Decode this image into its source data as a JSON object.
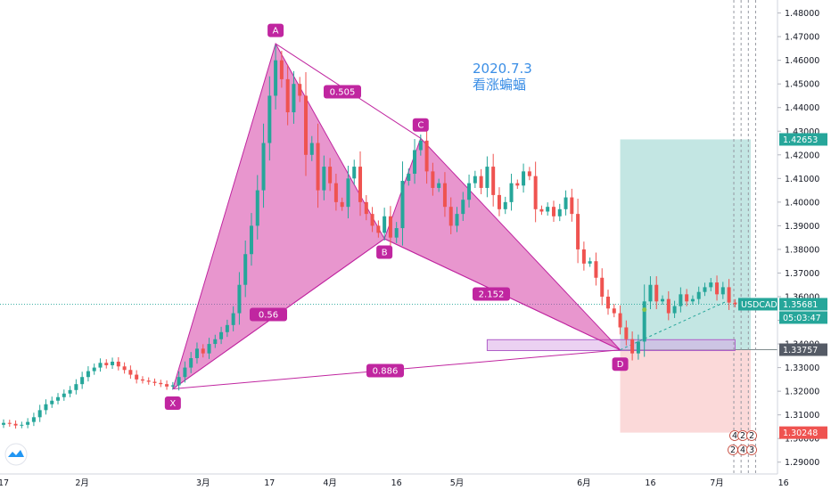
{
  "chart_data": {
    "type": "candlestick",
    "symbol": "USDCAD",
    "y_axis": {
      "min": 1.285,
      "max": 1.4855,
      "ticks": [
        "1.29000",
        "1.30000",
        "1.31000",
        "1.32000",
        "1.33000",
        "1.34000",
        "1.35000",
        "1.36000",
        "1.37000",
        "1.38000",
        "1.39000",
        "1.40000",
        "1.41000",
        "1.42000",
        "1.43000",
        "1.44000",
        "1.45000",
        "1.46000",
        "1.47000",
        "1.48000"
      ]
    },
    "x_axis": {
      "ticks": [
        {
          "label": "17",
          "i": 0
        },
        {
          "label": "2月",
          "i": 13
        },
        {
          "label": "3月",
          "i": 33
        },
        {
          "label": "17",
          "i": 44
        },
        {
          "label": "4月",
          "i": 54
        },
        {
          "label": "16",
          "i": 65
        },
        {
          "label": "5月",
          "i": 75
        },
        {
          "label": "6月",
          "i": 96
        },
        {
          "label": "16",
          "i": 107
        },
        {
          "label": "7月",
          "i": 118
        },
        {
          "label": "16",
          "i": 129
        }
      ],
      "n_slots": 138
    },
    "candles_from": 0,
    "closes": [
      1.3066,
      1.3062,
      1.3055,
      1.3058,
      1.307,
      1.309,
      1.312,
      1.3145,
      1.316,
      1.3175,
      1.319,
      1.3205,
      1.323,
      1.326,
      1.3285,
      1.33,
      1.332,
      1.331,
      1.3325,
      1.3305,
      1.329,
      1.327,
      1.325,
      1.3245,
      1.324,
      1.3235,
      1.323,
      1.322,
      1.3225,
      1.326,
      1.33,
      1.334,
      1.338,
      1.336,
      1.34,
      1.342,
      1.345,
      1.348,
      1.353,
      1.365,
      1.378,
      1.39,
      1.405,
      1.425,
      1.445,
      1.46,
      1.452,
      1.438,
      1.45,
      1.445,
      1.42,
      1.425,
      1.405,
      1.415,
      1.408,
      1.4,
      1.398,
      1.41,
      1.415,
      1.4,
      1.395,
      1.39,
      1.387,
      1.394,
      1.385,
      1.389,
      1.409,
      1.412,
      1.422,
      1.426,
      1.413,
      1.406,
      1.408,
      1.398,
      1.39,
      1.395,
      1.401,
      1.408,
      1.411,
      1.406,
      1.415,
      1.403,
      1.397,
      1.4,
      1.408,
      1.407,
      1.413,
      1.411,
      1.397,
      1.396,
      1.398,
      1.394,
      1.397,
      1.402,
      1.395,
      1.38,
      1.374,
      1.375,
      1.368,
      1.36,
      1.355,
      1.353,
      1.347,
      1.342,
      1.336,
      1.341,
      1.358,
      1.365,
      1.358,
      1.359,
      1.353,
      1.356,
      1.361,
      1.358,
      1.359,
      1.362,
      1.364,
      1.366,
      1.361,
      1.364,
      1.3575,
      1.3568
    ],
    "harmonic": {
      "name": "看涨蝙蝠",
      "date_note": "2020.7.3",
      "points": [
        {
          "label": "X",
          "i": 28,
          "price": 1.321
        },
        {
          "label": "A",
          "i": 45,
          "price": 1.467
        },
        {
          "label": "B",
          "i": 63,
          "price": 1.3845
        },
        {
          "label": "C",
          "i": 69,
          "price": 1.427
        },
        {
          "label": "D",
          "i": 102,
          "price": 1.3375
        }
      ],
      "ratios": [
        {
          "label": "0.505",
          "leg": "XA-AB"
        },
        {
          "label": "0.56",
          "leg": "XB"
        },
        {
          "label": "2.152",
          "leg": "BD"
        },
        {
          "label": "0.886",
          "leg": "XD"
        }
      ]
    },
    "position": {
      "target": "1.42653",
      "entry": "1.33757",
      "stop": "1.30248"
    },
    "last_price": {
      "label": "USDCAD",
      "value": "1.35681",
      "countdown": "05:03:47"
    },
    "bottom_right_digits": [
      "4",
      "2",
      "2",
      "2",
      "4",
      "3"
    ]
  }
}
